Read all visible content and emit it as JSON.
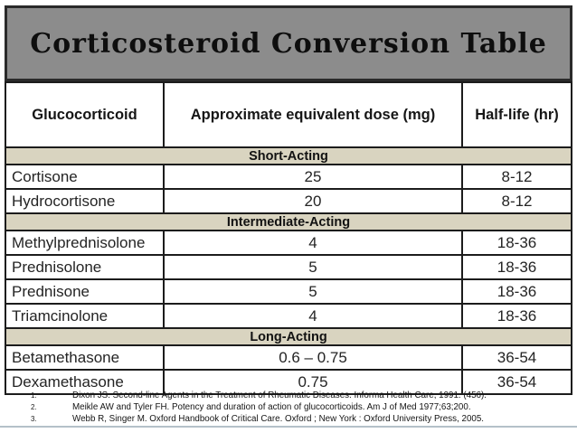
{
  "title": "Corticosteroid Conversion Table",
  "table": {
    "headers": [
      "Glucocorticoid",
      "Approximate equivalent dose (mg)",
      "Half-life (hr)"
    ],
    "sections": [
      {
        "id": "short-acting",
        "label": "Short-Acting",
        "rows": [
          {
            "drug": "Cortisone",
            "dose": "25",
            "half_life": "8-12"
          },
          {
            "drug": "Hydrocortisone",
            "dose": "20",
            "half_life": "8-12"
          }
        ]
      },
      {
        "id": "intermediate-acting",
        "label": "Intermediate-Acting",
        "rows": [
          {
            "drug": "Methylprednisolone",
            "dose": "4",
            "half_life": "18-36"
          },
          {
            "drug": "Prednisolone",
            "dose": "5",
            "half_life": "18-36"
          },
          {
            "drug": "Prednisone",
            "dose": "5",
            "half_life": "18-36"
          },
          {
            "drug": "Triamcinolone",
            "dose": "4",
            "half_life": "18-36"
          }
        ]
      },
      {
        "id": "long-acting",
        "label": "Long-Acting",
        "rows": [
          {
            "drug": "Betamethasone",
            "dose": "0.6 – 0.75",
            "half_life": "36-54"
          },
          {
            "drug": "Dexamethasone",
            "dose": "0.75",
            "half_life": "36-54"
          }
        ]
      }
    ]
  },
  "footnotes": [
    {
      "marker": "1.",
      "text": "Dixon JS. Second-line Agents in the Treatment of Rheumatic Diseases. Informa Health Care, 1991. (456)."
    },
    {
      "marker": "2.",
      "text": "Meikle AW and Tyler FH. Potency and duration of action of glucocorticoids. Am J of Med 1977;63;200."
    },
    {
      "marker": "3.",
      "text": "Webb R, Singer M. Oxford Handbook of Critical Care. Oxford ; New York : Oxford University Press, 2005."
    }
  ],
  "colors": {
    "banner_bg": "#8c8c8c",
    "banner_border": "#2a2a2a",
    "border": "#1c1c1c",
    "band_bg": "#d9d4c0",
    "bottom_rule": "#b4c1c9"
  }
}
